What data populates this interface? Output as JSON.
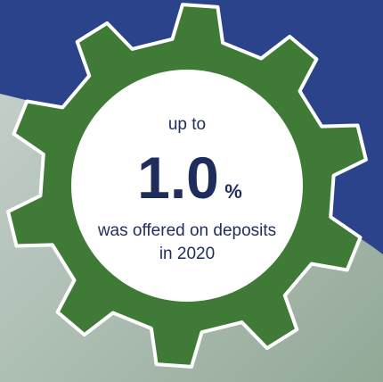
{
  "badge": {
    "intro": "up to",
    "figure": "1.0",
    "unit": "%",
    "caption_line1": "was offered on deposits",
    "caption_line2": "in 2020"
  }
}
